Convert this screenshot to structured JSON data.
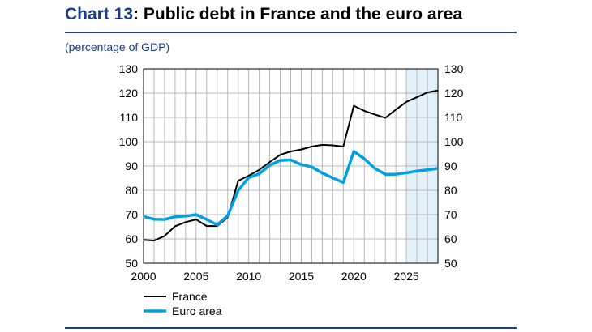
{
  "header": {
    "title_num": "Chart 13",
    "title_rest": ": Public debt in France and the euro area",
    "subtitle": "(percentage of GDP)"
  },
  "chart_data": {
    "type": "line",
    "title": "Public debt in France and the euro area",
    "ylabel": "(percentage of GDP)",
    "xlim": [
      2000,
      2028
    ],
    "ylim": [
      50,
      130
    ],
    "yticks": [
      50,
      60,
      70,
      80,
      90,
      100,
      110,
      120,
      130
    ],
    "xticks": [
      2000,
      2005,
      2010,
      2015,
      2020,
      2025
    ],
    "grid": true,
    "dual_y_axis_labels": true,
    "shaded_projection_range": [
      2025,
      2028
    ],
    "shade_color": "#e3f1fb",
    "legend_placement": "bottom-left",
    "x": [
      2000,
      2001,
      2002,
      2003,
      2004,
      2005,
      2006,
      2007,
      2008,
      2009,
      2010,
      2011,
      2012,
      2013,
      2014,
      2015,
      2016,
      2017,
      2018,
      2019,
      2020,
      2021,
      2022,
      2023,
      2024,
      2025,
      2026,
      2027,
      2028
    ],
    "series": [
      {
        "name": "France",
        "color": "#000000",
        "values": [
          59.6,
          59.3,
          61.2,
          65.2,
          66.9,
          68.0,
          65.3,
          65.3,
          68.8,
          83.9,
          86.0,
          88.4,
          91.6,
          94.6,
          96.0,
          96.8,
          98.0,
          98.7,
          98.5,
          98.0,
          114.8,
          112.7,
          111.2,
          109.8,
          113.2,
          116.4,
          118.3,
          120.3,
          121.1
        ]
      },
      {
        "name": "Euro area",
        "color": "#00a0e3",
        "values": [
          69.2,
          68.1,
          68.0,
          69.1,
          69.4,
          70.0,
          68.0,
          65.8,
          69.5,
          79.9,
          85.2,
          86.8,
          90.3,
          92.3,
          92.5,
          90.6,
          89.6,
          87.1,
          85.1,
          83.2,
          96.0,
          93.0,
          89.0,
          86.6,
          86.6,
          87.2,
          87.9,
          88.4,
          89.0
        ]
      }
    ]
  }
}
